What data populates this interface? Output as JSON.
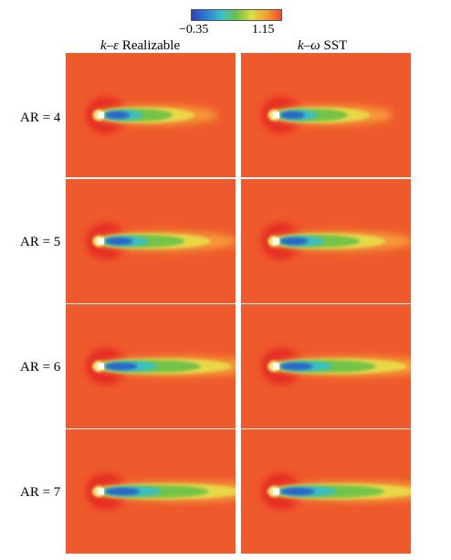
{
  "colorbar": {
    "min_label": "−0.35",
    "max_label": "1.15",
    "colors": [
      "#3040b8",
      "#2a7fd4",
      "#36c2c8",
      "#6cc24a",
      "#d8e040",
      "#f7a030",
      "#ee4b2b"
    ]
  },
  "columns": [
    {
      "prefix": "k–ε",
      "suffix": " Realizable"
    },
    {
      "prefix": "k–ω",
      "suffix": " SST"
    }
  ],
  "rows": [
    {
      "label": "AR = 4",
      "wake_scale": 0.55
    },
    {
      "label": "AR = 5",
      "wake_scale": 0.7
    },
    {
      "label": "AR = 6",
      "wake_scale": 0.9
    },
    {
      "label": "AR = 7",
      "wake_scale": 1.0
    }
  ]
}
